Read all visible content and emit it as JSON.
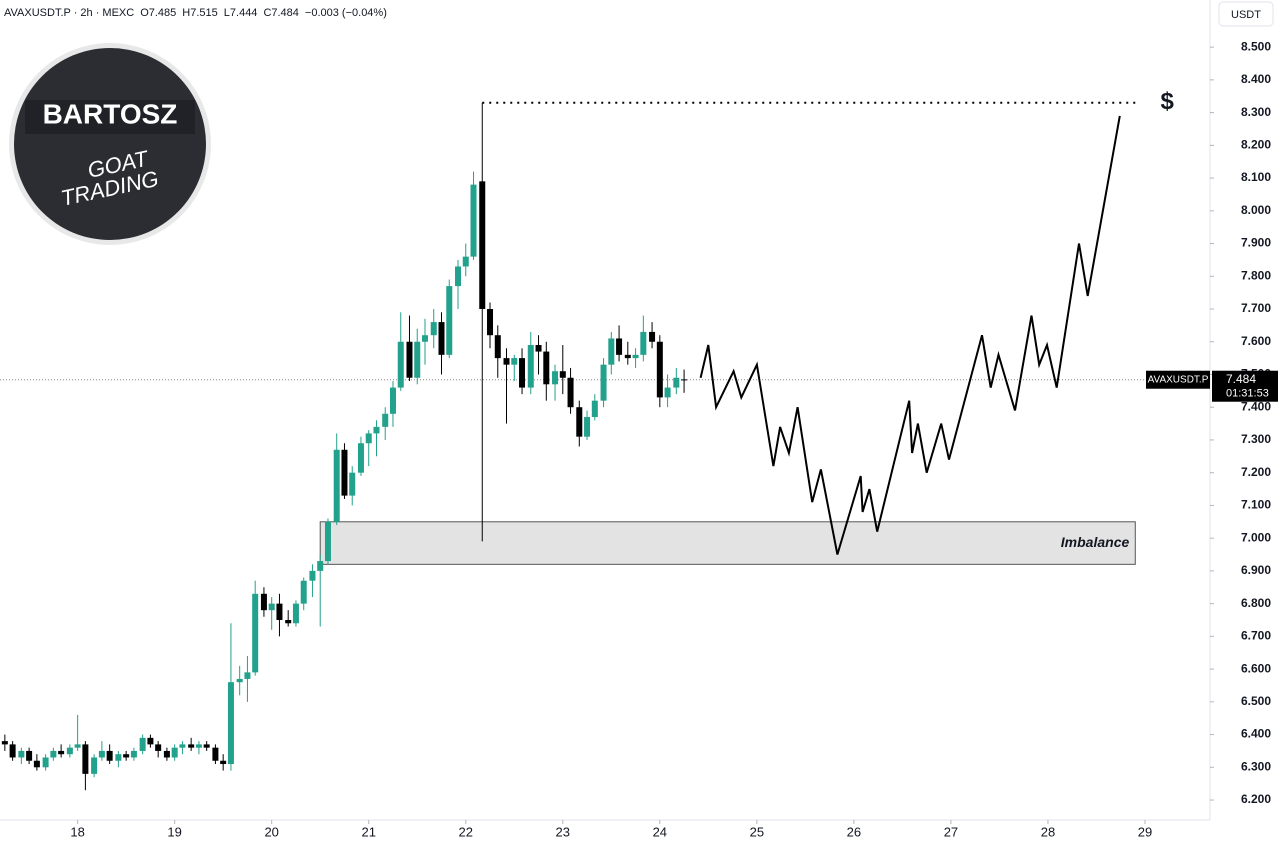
{
  "chart_data": {
    "type": "candlestick",
    "header": [
      "AVAXUSDT.P · 2h · MEXC",
      "O7.485",
      "H7.515",
      "L7.444",
      "C7.484",
      "−0.003 (−0.04%)"
    ],
    "logo": {
      "name": "BARTOSZ",
      "line1": "GOAT",
      "line2": "TRADING"
    },
    "currency": "USDT",
    "up_color": "#22a18c",
    "down_color": "#000000",
    "x": [
      17.25,
      17.33,
      17.42,
      17.5,
      17.58,
      17.67,
      17.75,
      17.83,
      17.92,
      18.0,
      18.08,
      18.17,
      18.25,
      18.33,
      18.42,
      18.5,
      18.58,
      18.67,
      18.75,
      18.83,
      18.92,
      19.0,
      19.08,
      19.17,
      19.25,
      19.33,
      19.42,
      19.5,
      19.58,
      19.67,
      19.75,
      19.83,
      19.92,
      20.0,
      20.08,
      20.17,
      20.25,
      20.33,
      20.42,
      20.5,
      20.58,
      20.67,
      20.75,
      20.83,
      20.92,
      21.0,
      21.08,
      21.17,
      21.25,
      21.33,
      21.42,
      21.5,
      21.58,
      21.67,
      21.75,
      21.83,
      21.92,
      22.0,
      22.08,
      22.17,
      22.25,
      22.33,
      22.42,
      22.5,
      22.58,
      22.67,
      22.75,
      22.83,
      22.92,
      23.0,
      23.08,
      23.17,
      23.25,
      23.33,
      23.42,
      23.5,
      23.58,
      23.67,
      23.75,
      23.83,
      23.92,
      24.0,
      24.08,
      24.17,
      24.25
    ],
    "open": [
      6.38,
      6.37,
      6.33,
      6.35,
      6.32,
      6.3,
      6.33,
      6.35,
      6.34,
      6.36,
      6.37,
      6.28,
      6.33,
      6.35,
      6.32,
      6.34,
      6.33,
      6.35,
      6.39,
      6.37,
      6.35,
      6.33,
      6.36,
      6.37,
      6.36,
      6.37,
      6.36,
      6.32,
      6.31,
      6.56,
      6.57,
      6.59,
      6.83,
      6.78,
      6.8,
      6.75,
      6.74,
      6.8,
      6.87,
      6.9,
      6.93,
      7.05,
      7.27,
      7.13,
      7.2,
      7.29,
      7.32,
      7.34,
      7.38,
      7.46,
      7.6,
      7.49,
      7.6,
      7.62,
      7.66,
      7.56,
      7.77,
      7.83,
      7.86,
      8.09,
      7.7,
      7.62,
      7.55,
      7.53,
      7.55,
      7.46,
      7.59,
      7.57,
      7.47,
      7.51,
      7.49,
      7.4,
      7.31,
      7.37,
      7.42,
      7.53,
      7.61,
      7.56,
      7.55,
      7.56,
      7.63,
      7.6,
      7.43,
      7.46,
      7.485
    ],
    "high": [
      6.4,
      6.38,
      6.36,
      6.36,
      6.34,
      6.34,
      6.36,
      6.37,
      6.37,
      6.46,
      6.38,
      6.34,
      6.38,
      6.37,
      6.35,
      6.35,
      6.36,
      6.4,
      6.4,
      6.38,
      6.36,
      6.37,
      6.38,
      6.39,
      6.38,
      6.38,
      6.37,
      6.34,
      6.74,
      6.61,
      6.64,
      6.87,
      6.85,
      6.82,
      6.83,
      6.78,
      6.81,
      6.88,
      6.92,
      6.95,
      7.06,
      7.32,
      7.29,
      7.22,
      7.31,
      7.33,
      7.36,
      7.4,
      7.48,
      7.69,
      7.68,
      7.64,
      7.67,
      7.7,
      7.69,
      7.79,
      7.85,
      7.9,
      8.12,
      8.33,
      7.72,
      7.65,
      7.58,
      7.56,
      7.58,
      7.63,
      7.62,
      7.6,
      7.53,
      7.59,
      7.52,
      7.42,
      7.39,
      7.44,
      7.55,
      7.63,
      7.65,
      7.6,
      7.58,
      7.68,
      7.66,
      7.62,
      7.5,
      7.52,
      7.515
    ],
    "low": [
      6.35,
      6.32,
      6.31,
      6.31,
      6.29,
      6.29,
      6.32,
      6.33,
      6.33,
      6.35,
      6.23,
      6.27,
      6.32,
      6.31,
      6.3,
      6.32,
      6.32,
      6.34,
      6.36,
      6.33,
      6.32,
      6.32,
      6.34,
      6.35,
      6.34,
      6.35,
      6.31,
      6.29,
      6.29,
      6.52,
      6.5,
      6.58,
      6.76,
      6.72,
      6.7,
      6.73,
      6.73,
      6.78,
      6.82,
      6.73,
      6.92,
      7.04,
      7.12,
      7.1,
      7.19,
      7.22,
      7.25,
      7.3,
      7.34,
      7.45,
      7.48,
      7.47,
      7.53,
      7.58,
      7.5,
      7.55,
      7.7,
      7.8,
      7.85,
      6.99,
      7.58,
      7.49,
      7.35,
      7.48,
      7.44,
      7.44,
      7.5,
      7.42,
      7.42,
      7.44,
      7.38,
      7.28,
      7.3,
      7.36,
      7.4,
      7.5,
      7.54,
      7.53,
      7.52,
      7.54,
      7.58,
      7.4,
      7.4,
      7.44,
      7.444
    ],
    "close": [
      6.37,
      6.33,
      6.35,
      6.32,
      6.3,
      6.33,
      6.35,
      6.34,
      6.36,
      6.37,
      6.28,
      6.33,
      6.35,
      6.32,
      6.34,
      6.33,
      6.35,
      6.39,
      6.37,
      6.35,
      6.33,
      6.36,
      6.37,
      6.36,
      6.37,
      6.36,
      6.32,
      6.31,
      6.56,
      6.57,
      6.59,
      6.83,
      6.78,
      6.8,
      6.75,
      6.74,
      6.8,
      6.87,
      6.9,
      6.93,
      7.05,
      7.27,
      7.13,
      7.2,
      7.29,
      7.32,
      7.34,
      7.38,
      7.46,
      7.6,
      7.49,
      7.6,
      7.62,
      7.66,
      7.56,
      7.77,
      7.83,
      7.86,
      8.08,
      7.7,
      7.62,
      7.55,
      7.53,
      7.55,
      7.46,
      7.59,
      7.57,
      7.47,
      7.51,
      7.49,
      7.4,
      7.31,
      7.37,
      7.42,
      7.53,
      7.61,
      7.56,
      7.55,
      7.56,
      7.63,
      7.6,
      7.43,
      7.46,
      7.49,
      7.484
    ],
    "projection": {
      "x": [
        24.42,
        24.5,
        24.58,
        24.76,
        24.84,
        25.0,
        25.17,
        25.24,
        25.33,
        25.42,
        25.57,
        25.66,
        25.83,
        26.07,
        26.09,
        26.16,
        26.24,
        26.57,
        26.6,
        26.66,
        26.75,
        26.9,
        26.98,
        27.32,
        27.41,
        27.49,
        27.66,
        27.83,
        27.91,
        27.99,
        28.09,
        28.32,
        28.41,
        28.74
      ],
      "values": [
        7.49,
        7.59,
        7.4,
        7.51,
        7.43,
        7.53,
        7.22,
        7.34,
        7.26,
        7.4,
        7.11,
        7.21,
        6.95,
        7.19,
        7.08,
        7.15,
        7.02,
        7.42,
        7.26,
        7.35,
        7.2,
        7.35,
        7.24,
        7.62,
        7.46,
        7.56,
        7.39,
        7.68,
        7.53,
        7.59,
        7.46,
        7.9,
        7.74,
        8.29
      ]
    },
    "imbalance": {
      "label": "Imbalance",
      "x": [
        20.5,
        28.9
      ],
      "y": [
        6.92,
        7.05
      ]
    },
    "target": {
      "label": "$",
      "value": 8.33,
      "x": [
        22.17,
        28.95
      ]
    },
    "last_price": {
      "name": "AVAXUSDT.P",
      "value": 7.484,
      "label": "7.484",
      "countdown": "01:31:53"
    },
    "xlim": [
      17.2,
      29.67
    ],
    "ylim": [
      6.139,
      8.644
    ],
    "xticks": [
      18,
      19,
      20,
      21,
      22,
      23,
      24,
      25,
      26,
      27,
      28,
      29
    ],
    "yticks": [
      {
        "value": 6.2,
        "label": "6.200"
      },
      {
        "value": 6.3,
        "label": "6.300"
      },
      {
        "value": 6.4,
        "label": "6.400"
      },
      {
        "value": 6.5,
        "label": "6.500"
      },
      {
        "value": 6.6,
        "label": "6.600"
      },
      {
        "value": 6.7,
        "label": "6.700"
      },
      {
        "value": 6.8,
        "label": "6.800"
      },
      {
        "value": 6.9,
        "label": "6.900"
      },
      {
        "value": 7.0,
        "label": "7.000"
      },
      {
        "value": 7.1,
        "label": "7.100"
      },
      {
        "value": 7.2,
        "label": "7.200"
      },
      {
        "value": 7.3,
        "label": "7.300"
      },
      {
        "value": 7.4,
        "label": "7.400"
      },
      {
        "value": 7.5,
        "label": "7.500"
      },
      {
        "value": 7.6,
        "label": "7.600"
      },
      {
        "value": 7.7,
        "label": "7.700"
      },
      {
        "value": 7.8,
        "label": "7.800"
      },
      {
        "value": 7.9,
        "label": "7.900"
      },
      {
        "value": 8.0,
        "label": "8.000"
      },
      {
        "value": 8.1,
        "label": "8.100"
      },
      {
        "value": 8.2,
        "label": "8.200"
      },
      {
        "value": 8.3,
        "label": "8.300"
      },
      {
        "value": 8.4,
        "label": "8.400"
      },
      {
        "value": 8.5,
        "label": "8.500"
      }
    ]
  }
}
